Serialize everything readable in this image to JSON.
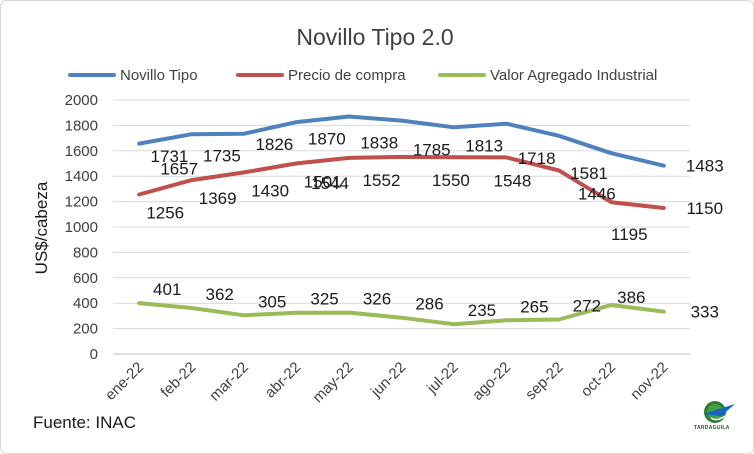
{
  "chart_data": {
    "type": "line",
    "title": "Novillo Tipo 2.0",
    "ylabel": "US$/cabeza",
    "xlabel": "",
    "ylim": [
      0,
      2000
    ],
    "yticks": [
      0,
      200,
      400,
      600,
      800,
      1000,
      1200,
      1400,
      1600,
      1800,
      2000
    ],
    "grid": true,
    "legend": "top",
    "categories": [
      "ene-22",
      "feb-22",
      "mar-22",
      "abr-22",
      "may-22",
      "jun-22",
      "jul-22",
      "ago-22",
      "sep-22",
      "oct-22",
      "nov-22"
    ],
    "series": [
      {
        "name": "Novillo Tipo",
        "color": "#4f81bd",
        "values": [
          1657,
          1731,
          1735,
          1826,
          1870,
          1838,
          1785,
          1813,
          1718,
          1581,
          1483
        ]
      },
      {
        "name": "Precio de compra",
        "color": "#c0504d",
        "values": [
          1256,
          1369,
          1430,
          1501,
          1544,
          1552,
          1550,
          1548,
          1446,
          1195,
          1150
        ]
      },
      {
        "name": "Valor Agregado Industrial",
        "color": "#9bbb59",
        "values": [
          401,
          362,
          305,
          325,
          326,
          286,
          235,
          265,
          272,
          386,
          333
        ]
      }
    ]
  },
  "source": "Fuente: INAC",
  "logo_text": "TARDAGUILA"
}
